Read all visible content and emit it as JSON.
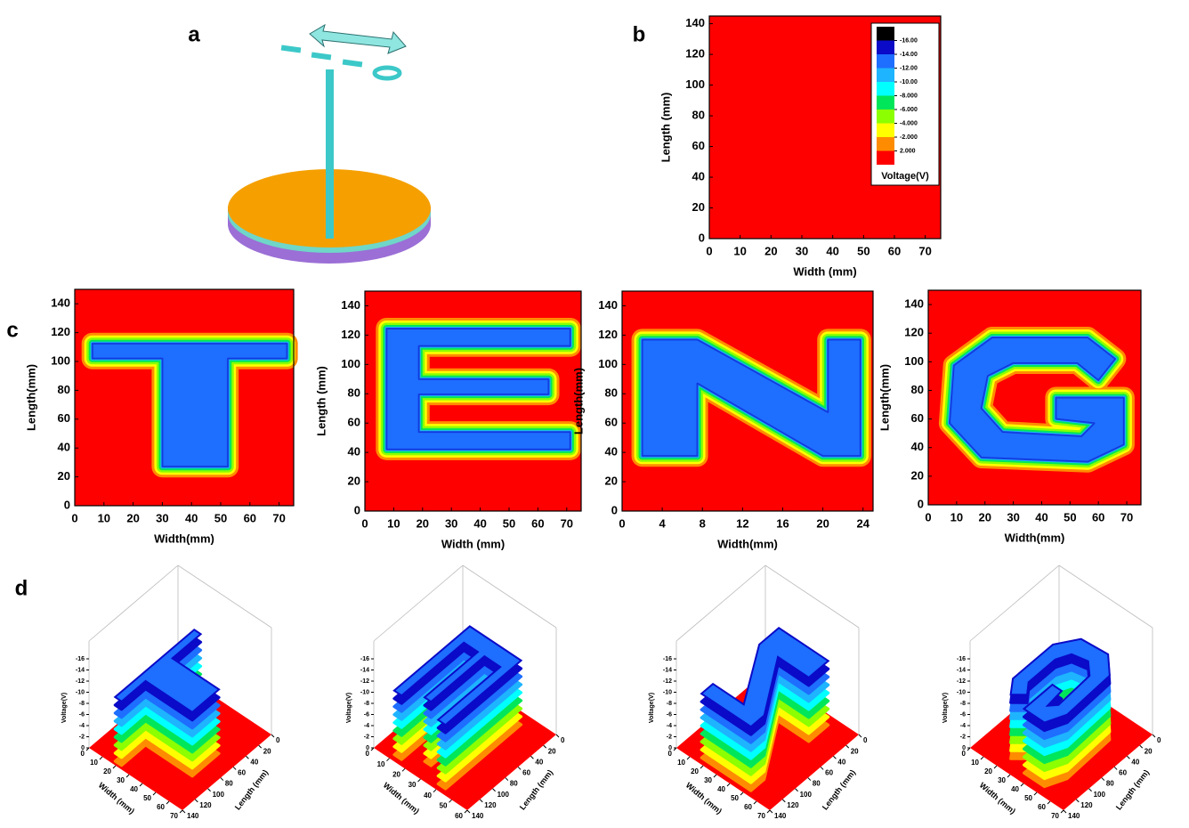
{
  "panel_labels": [
    "a",
    "b",
    "c",
    "d"
  ],
  "chart_data": [
    {
      "type": "contour",
      "shape": "none",
      "x_label": "Width (mm)",
      "y_label": "Length (mm)",
      "xlim": [
        0,
        75
      ],
      "ylim": [
        0,
        145
      ],
      "xticks": [
        0,
        10,
        20,
        30,
        40,
        50,
        60,
        70
      ],
      "yticks": [
        0,
        20,
        40,
        60,
        80,
        100,
        120,
        140
      ],
      "background": "#ff0000",
      "legend": {
        "title": "Voltage(V)",
        "position": "upper right",
        "colors": [
          "#000000",
          "#0a0ac8",
          "#1e6eff",
          "#1eb4ff",
          "#00ffff",
          "#00e65a",
          "#8cff00",
          "#ffff00",
          "#ff8c00",
          "#ff0000"
        ],
        "levels": [
          {
            "value": -16,
            "label": "-16.00"
          },
          {
            "value": -14,
            "label": "-14.00"
          },
          {
            "value": -12,
            "label": "-12.00"
          },
          {
            "value": -10,
            "label": "-10.00"
          },
          {
            "value": -8,
            "label": "-8.000"
          },
          {
            "value": -6,
            "label": "-6.000"
          },
          {
            "value": -4,
            "label": "-4.000"
          },
          {
            "value": -2,
            "label": "-2.000"
          },
          {
            "value": 2,
            "label": "2.000"
          }
        ]
      }
    },
    {
      "type": "contour",
      "shape": "T",
      "x_label": "Width(mm)",
      "y_label": "Length(mm)",
      "xlim": [
        0,
        75
      ],
      "ylim": [
        0,
        150
      ],
      "xticks": [
        0,
        10,
        20,
        30,
        40,
        50,
        60,
        70
      ],
      "yticks": [
        0,
        20,
        40,
        60,
        80,
        100,
        120,
        140
      ],
      "background": "#ff0000"
    },
    {
      "type": "contour",
      "shape": "E",
      "x_label": "Width (mm)",
      "y_label": "Length (mm)",
      "xlim": [
        0,
        75
      ],
      "ylim": [
        0,
        150
      ],
      "xticks": [
        0,
        10,
        20,
        30,
        40,
        50,
        60,
        70
      ],
      "yticks": [
        0,
        20,
        40,
        60,
        80,
        100,
        120,
        140
      ],
      "background": "#ff0000"
    },
    {
      "type": "contour",
      "shape": "N",
      "x_label": "Width(mm)",
      "y_label": "Length(mm)",
      "xlim": [
        0,
        25
      ],
      "ylim": [
        0,
        150
      ],
      "xticks": [
        0,
        4,
        8,
        12,
        16,
        20,
        24
      ],
      "yticks": [
        0,
        20,
        40,
        60,
        80,
        100,
        120,
        140
      ],
      "background": "#ff0000"
    },
    {
      "type": "contour",
      "shape": "G",
      "x_label": "Width(mm)",
      "y_label": "Length(mm)",
      "xlim": [
        0,
        75
      ],
      "ylim": [
        0,
        150
      ],
      "xticks": [
        0,
        10,
        20,
        30,
        40,
        50,
        60,
        70
      ],
      "yticks": [
        0,
        20,
        40,
        60,
        80,
        100,
        120,
        140
      ],
      "background": "#ff0000"
    },
    {
      "type": "surface3d",
      "shape": "T",
      "x_label": "Width (mm)",
      "y_label": "Length (mm)",
      "z_label": "Voltage(V)",
      "xlim": [
        0,
        70
      ],
      "xticks": [
        0,
        10,
        20,
        30,
        40,
        50,
        60,
        70
      ],
      "ylim": [
        0,
        140
      ],
      "yticks": [
        0,
        20,
        40,
        60,
        80,
        100,
        120,
        140
      ],
      "zlim": [
        0,
        -16
      ],
      "zticks": [
        -16,
        -14,
        -12,
        -10,
        -8,
        -6,
        -4,
        -2,
        0
      ]
    },
    {
      "type": "surface3d",
      "shape": "E",
      "x_label": "Width (mm)",
      "y_label": "Length (mm)",
      "z_label": "Voltage(V)",
      "xlim": [
        0,
        60
      ],
      "xticks": [
        0,
        10,
        20,
        30,
        40,
        50,
        60
      ],
      "ylim": [
        0,
        140
      ],
      "yticks": [
        0,
        20,
        40,
        60,
        80,
        100,
        120,
        140
      ],
      "zlim": [
        0,
        -16
      ],
      "zticks": [
        -16,
        -14,
        -12,
        -10,
        -8,
        -6,
        -4,
        -2,
        0
      ]
    },
    {
      "type": "surface3d",
      "shape": "N",
      "x_label": "Width (mm)",
      "y_label": "Length (mm)",
      "z_label": "Voltage(V)",
      "xlim": [
        0,
        70
      ],
      "xticks": [
        0,
        10,
        20,
        30,
        40,
        50,
        60,
        70
      ],
      "ylim": [
        0,
        140
      ],
      "yticks": [
        0,
        20,
        40,
        60,
        80,
        100,
        120,
        140
      ],
      "zlim": [
        0,
        -16
      ],
      "zticks": [
        -16,
        -14,
        -12,
        -10,
        -8,
        -6,
        -4,
        -2,
        0
      ]
    },
    {
      "type": "surface3d",
      "shape": "G",
      "x_label": "Width (mm)",
      "y_label": "Length (mm)",
      "z_label": "Voltage(V)",
      "xlim": [
        0,
        70
      ],
      "xticks": [
        0,
        10,
        20,
        30,
        40,
        50,
        60,
        70
      ],
      "ylim": [
        0,
        140
      ],
      "yticks": [
        0,
        20,
        40,
        60,
        80,
        100,
        120,
        140
      ],
      "zlim": [
        0,
        -16
      ],
      "zticks": [
        -16,
        -14,
        -12,
        -10,
        -8,
        -6,
        -4,
        -2,
        0
      ]
    }
  ]
}
